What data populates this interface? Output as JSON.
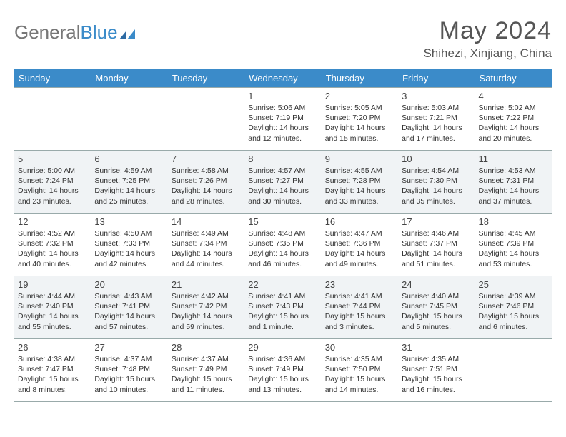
{
  "brand": {
    "part1": "General",
    "part2": "Blue"
  },
  "title": "May 2024",
  "location": "Shihezi, Xinjiang, China",
  "weekdays": [
    "Sunday",
    "Monday",
    "Tuesday",
    "Wednesday",
    "Thursday",
    "Friday",
    "Saturday"
  ],
  "colors": {
    "header_bg": "#3b8bc9",
    "alt_row": "#f0f3f5",
    "rule": "#9aa"
  },
  "weeks": [
    [
      null,
      null,
      null,
      {
        "n": "1",
        "sr": "5:06 AM",
        "ss": "7:19 PM",
        "dl": "14 hours and 12 minutes."
      },
      {
        "n": "2",
        "sr": "5:05 AM",
        "ss": "7:20 PM",
        "dl": "14 hours and 15 minutes."
      },
      {
        "n": "3",
        "sr": "5:03 AM",
        "ss": "7:21 PM",
        "dl": "14 hours and 17 minutes."
      },
      {
        "n": "4",
        "sr": "5:02 AM",
        "ss": "7:22 PM",
        "dl": "14 hours and 20 minutes."
      }
    ],
    [
      {
        "n": "5",
        "sr": "5:00 AM",
        "ss": "7:24 PM",
        "dl": "14 hours and 23 minutes."
      },
      {
        "n": "6",
        "sr": "4:59 AM",
        "ss": "7:25 PM",
        "dl": "14 hours and 25 minutes."
      },
      {
        "n": "7",
        "sr": "4:58 AM",
        "ss": "7:26 PM",
        "dl": "14 hours and 28 minutes."
      },
      {
        "n": "8",
        "sr": "4:57 AM",
        "ss": "7:27 PM",
        "dl": "14 hours and 30 minutes."
      },
      {
        "n": "9",
        "sr": "4:55 AM",
        "ss": "7:28 PM",
        "dl": "14 hours and 33 minutes."
      },
      {
        "n": "10",
        "sr": "4:54 AM",
        "ss": "7:30 PM",
        "dl": "14 hours and 35 minutes."
      },
      {
        "n": "11",
        "sr": "4:53 AM",
        "ss": "7:31 PM",
        "dl": "14 hours and 37 minutes."
      }
    ],
    [
      {
        "n": "12",
        "sr": "4:52 AM",
        "ss": "7:32 PM",
        "dl": "14 hours and 40 minutes."
      },
      {
        "n": "13",
        "sr": "4:50 AM",
        "ss": "7:33 PM",
        "dl": "14 hours and 42 minutes."
      },
      {
        "n": "14",
        "sr": "4:49 AM",
        "ss": "7:34 PM",
        "dl": "14 hours and 44 minutes."
      },
      {
        "n": "15",
        "sr": "4:48 AM",
        "ss": "7:35 PM",
        "dl": "14 hours and 46 minutes."
      },
      {
        "n": "16",
        "sr": "4:47 AM",
        "ss": "7:36 PM",
        "dl": "14 hours and 49 minutes."
      },
      {
        "n": "17",
        "sr": "4:46 AM",
        "ss": "7:37 PM",
        "dl": "14 hours and 51 minutes."
      },
      {
        "n": "18",
        "sr": "4:45 AM",
        "ss": "7:39 PM",
        "dl": "14 hours and 53 minutes."
      }
    ],
    [
      {
        "n": "19",
        "sr": "4:44 AM",
        "ss": "7:40 PM",
        "dl": "14 hours and 55 minutes."
      },
      {
        "n": "20",
        "sr": "4:43 AM",
        "ss": "7:41 PM",
        "dl": "14 hours and 57 minutes."
      },
      {
        "n": "21",
        "sr": "4:42 AM",
        "ss": "7:42 PM",
        "dl": "14 hours and 59 minutes."
      },
      {
        "n": "22",
        "sr": "4:41 AM",
        "ss": "7:43 PM",
        "dl": "15 hours and 1 minute."
      },
      {
        "n": "23",
        "sr": "4:41 AM",
        "ss": "7:44 PM",
        "dl": "15 hours and 3 minutes."
      },
      {
        "n": "24",
        "sr": "4:40 AM",
        "ss": "7:45 PM",
        "dl": "15 hours and 5 minutes."
      },
      {
        "n": "25",
        "sr": "4:39 AM",
        "ss": "7:46 PM",
        "dl": "15 hours and 6 minutes."
      }
    ],
    [
      {
        "n": "26",
        "sr": "4:38 AM",
        "ss": "7:47 PM",
        "dl": "15 hours and 8 minutes."
      },
      {
        "n": "27",
        "sr": "4:37 AM",
        "ss": "7:48 PM",
        "dl": "15 hours and 10 minutes."
      },
      {
        "n": "28",
        "sr": "4:37 AM",
        "ss": "7:49 PM",
        "dl": "15 hours and 11 minutes."
      },
      {
        "n": "29",
        "sr": "4:36 AM",
        "ss": "7:49 PM",
        "dl": "15 hours and 13 minutes."
      },
      {
        "n": "30",
        "sr": "4:35 AM",
        "ss": "7:50 PM",
        "dl": "15 hours and 14 minutes."
      },
      {
        "n": "31",
        "sr": "4:35 AM",
        "ss": "7:51 PM",
        "dl": "15 hours and 16 minutes."
      },
      null
    ]
  ],
  "labels": {
    "sunrise": "Sunrise:",
    "sunset": "Sunset:",
    "daylight": "Daylight:"
  }
}
